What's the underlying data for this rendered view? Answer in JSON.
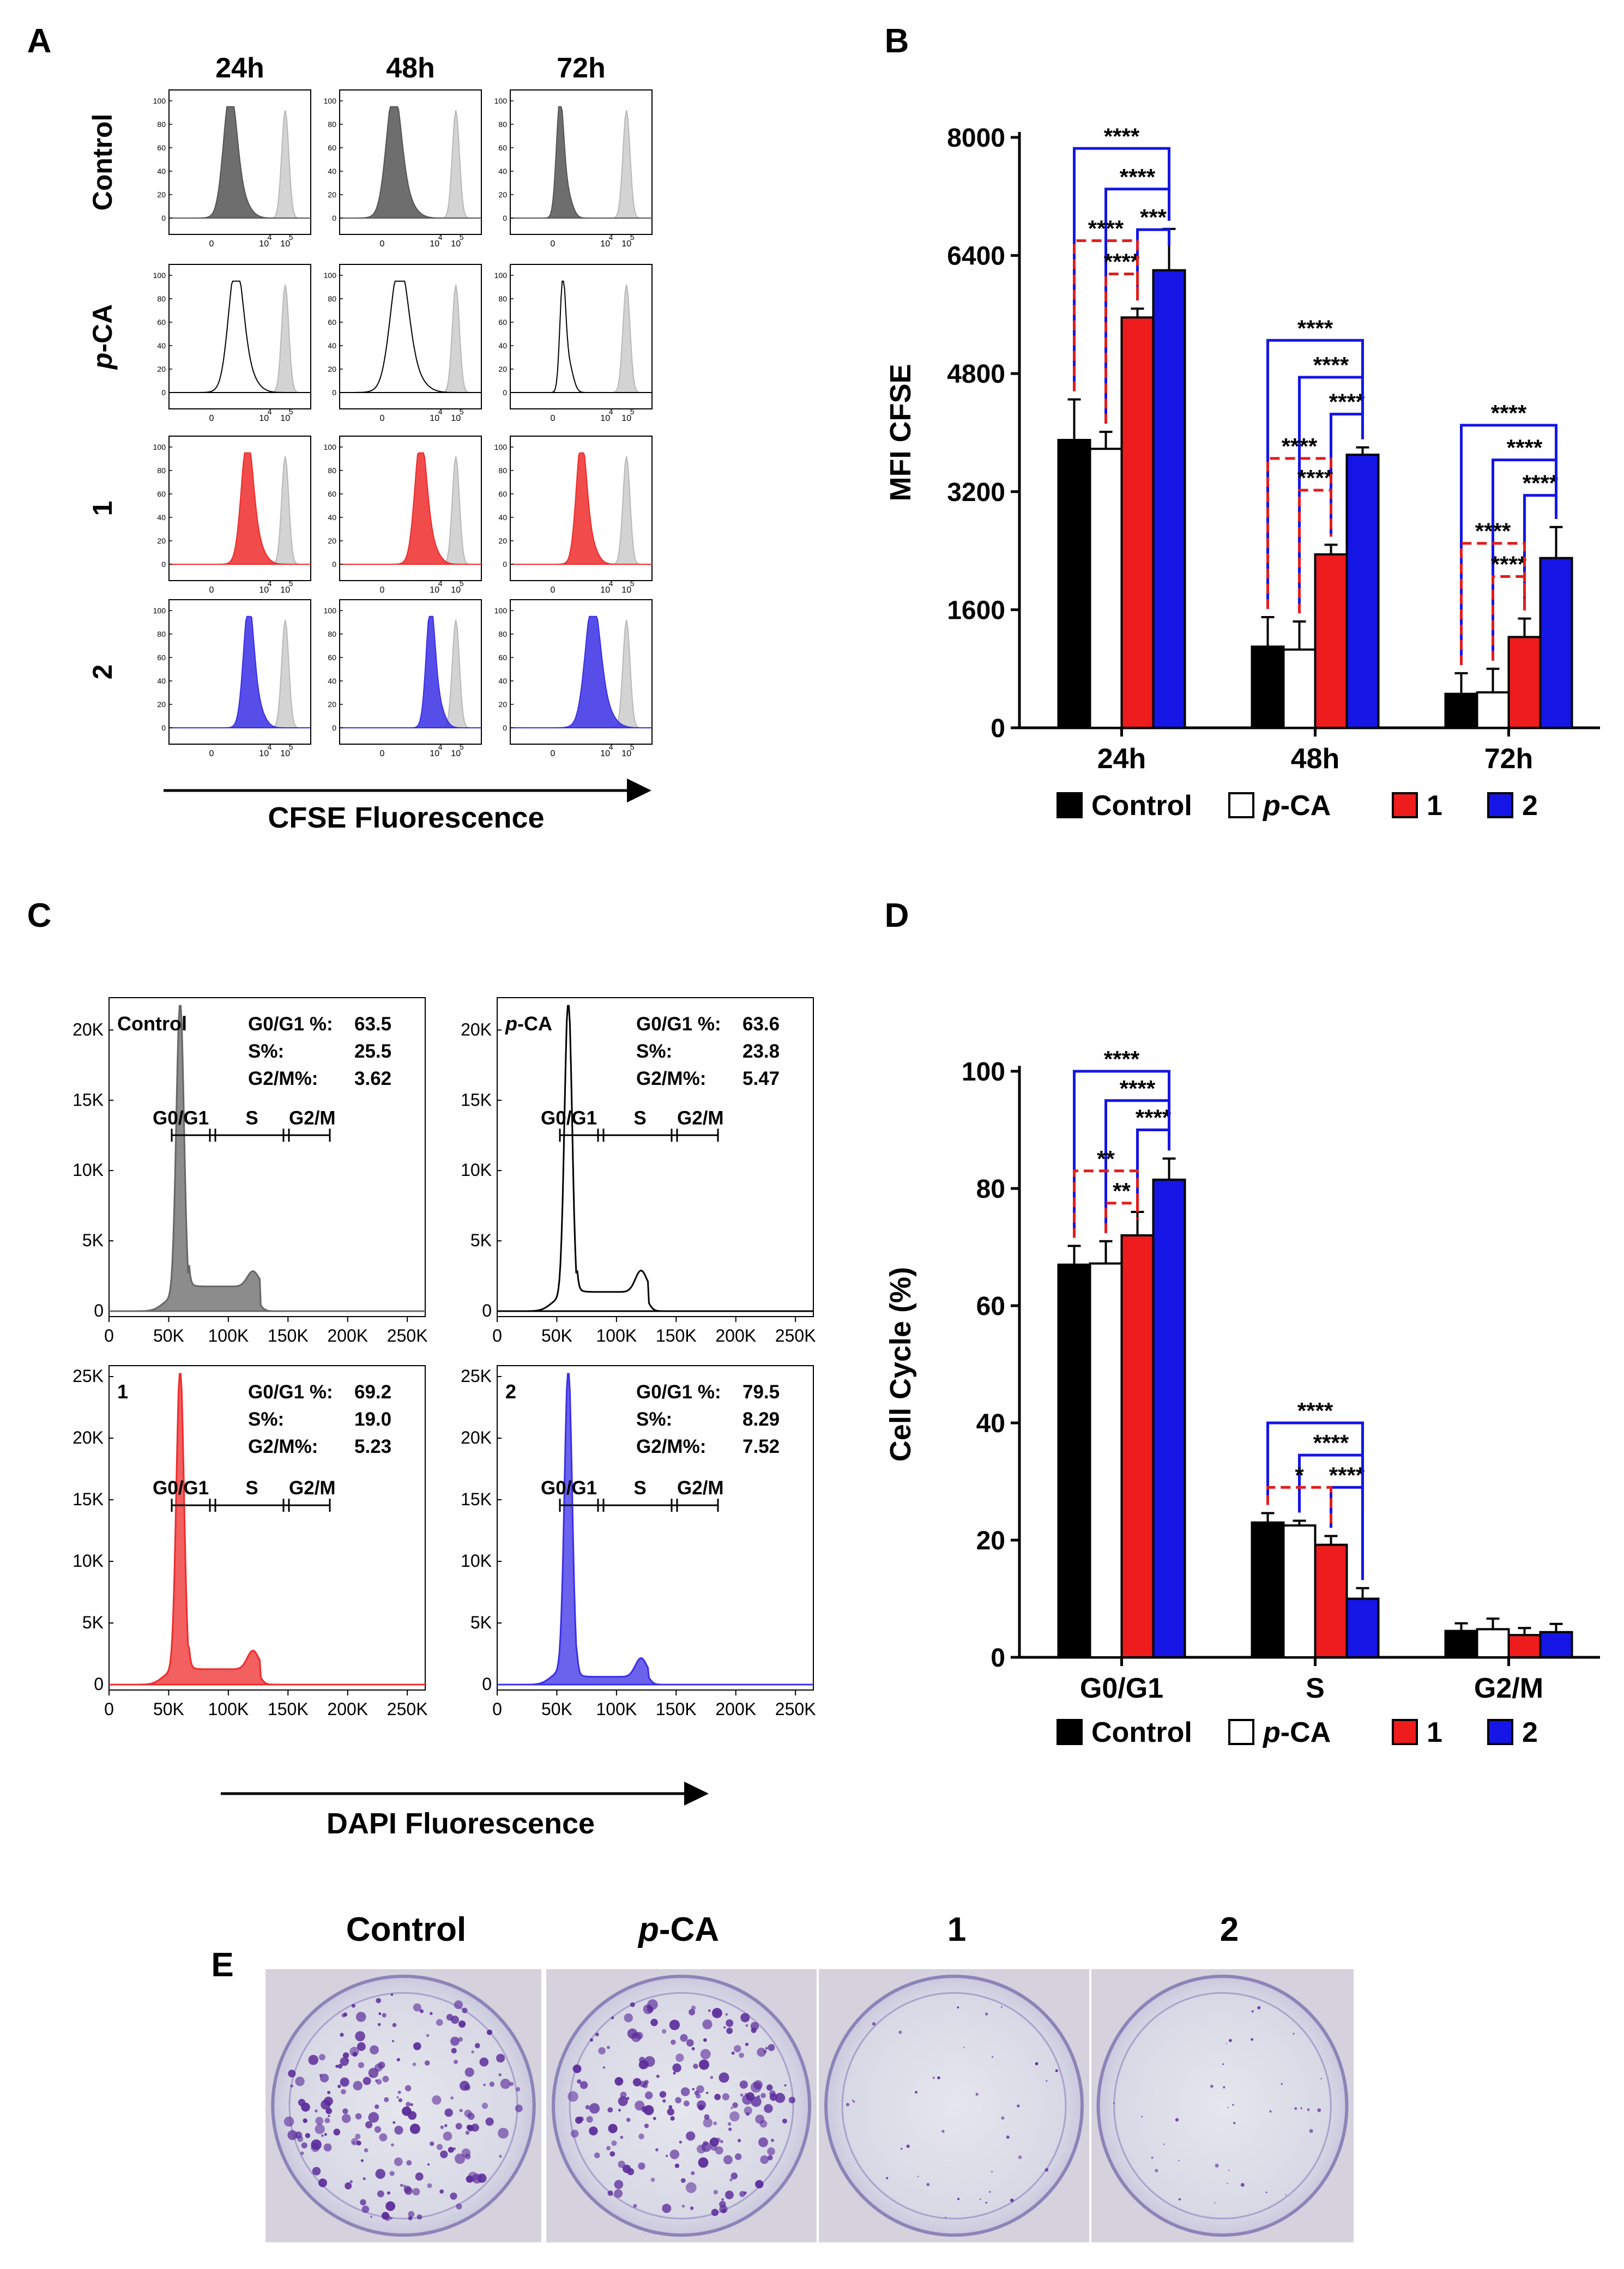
{
  "panels": {
    "A": {
      "letter": "A",
      "columns": [
        "24h",
        "48h",
        "72h"
      ],
      "rows": [
        {
          "label": "Control",
          "label_prefix": "",
          "label_rest": "Control",
          "color": "#555555",
          "filled": true
        },
        {
          "label": "p-CA",
          "label_prefix": "p",
          "label_rest": "-CA",
          "color": "#000000",
          "filled": false
        },
        {
          "label": "1",
          "label_prefix": "",
          "label_rest": "1",
          "color": "#ee2b2b",
          "filled": true
        },
        {
          "label": "2",
          "label_prefix": "",
          "label_rest": "2",
          "color": "#3a2fe6",
          "filled": true
        }
      ],
      "y_ticks": [
        "0",
        "20",
        "40",
        "60",
        "80",
        "100"
      ],
      "x_ticks": [
        "0",
        "10",
        "4",
        "10",
        "5"
      ],
      "axis_label": "CFSE Fluorescence",
      "reference_color": "#d3d3d3"
    },
    "C": {
      "letter": "C",
      "subplots": [
        {
          "label": "Control",
          "label_prefix": "",
          "label_rest": "Control",
          "color": "#666666",
          "filled": true,
          "stats": [
            {
              "k": "G0/G1 %:",
              "v": "63.5"
            },
            {
              "k": "S%:",
              "v": "25.5"
            },
            {
              "k": "G2/M%:",
              "v": "3.62"
            }
          ],
          "gates": [
            "G0/G1",
            "S",
            "G2/M"
          ],
          "y_ticks": [
            "0",
            "5K",
            "10K",
            "15K",
            "20K"
          ]
        },
        {
          "label": "p-CA",
          "label_prefix": "p",
          "label_rest": "-CA",
          "color": "#000000",
          "filled": false,
          "stats": [
            {
              "k": "G0/G1 %:",
              "v": "63.6"
            },
            {
              "k": "S%:",
              "v": "23.8"
            },
            {
              "k": "G2/M%:",
              "v": "5.47"
            }
          ],
          "gates": [
            "G0/G1",
            "S",
            "G2/M"
          ],
          "y_ticks": [
            "0",
            "5K",
            "10K",
            "15K",
            "20K"
          ]
        },
        {
          "label": "1",
          "label_prefix": "",
          "label_rest": "1",
          "color": "#ee2b2b",
          "filled": true,
          "stats": [
            {
              "k": "G0/G1 %:",
              "v": "69.2"
            },
            {
              "k": "S%:",
              "v": "19.0"
            },
            {
              "k": "G2/M%:",
              "v": "5.23"
            }
          ],
          "gates": [
            "G0/G1",
            "S",
            "G2/M"
          ],
          "y_ticks": [
            "0",
            "5K",
            "10K",
            "15K",
            "20K",
            "25K"
          ]
        },
        {
          "label": "2",
          "label_prefix": "",
          "label_rest": "2",
          "color": "#3a2fe6",
          "filled": true,
          "stats": [
            {
              "k": "G0/G1 %:",
              "v": "79.5"
            },
            {
              "k": "S%:",
              "v": "8.29"
            },
            {
              "k": "G2/M%:",
              "v": "7.52"
            }
          ],
          "gates": [
            "G0/G1",
            "S",
            "G2/M"
          ],
          "y_ticks": [
            "0",
            "5K",
            "10K",
            "15K",
            "20K",
            "25K"
          ]
        }
      ],
      "x_ticks": [
        "0",
        "50K",
        "100K",
        "150K",
        "200K",
        "250K"
      ],
      "axis_label": "DAPI Fluorescence"
    },
    "E": {
      "letter": "E",
      "wells": [
        {
          "label": "Control",
          "label_prefix": "",
          "label_rest": "Control",
          "colonies": "dense"
        },
        {
          "label": "p-CA",
          "label_prefix": "p",
          "label_rest": "-CA",
          "colonies": "dense"
        },
        {
          "label": "1",
          "label_prefix": "",
          "label_rest": "1",
          "colonies": "sparse"
        },
        {
          "label": "2",
          "label_prefix": "",
          "label_rest": "2",
          "colonies": "sparse"
        }
      ]
    }
  },
  "legend": [
    {
      "name": "Control",
      "prefix": "",
      "rest": "Control",
      "color": "#000000"
    },
    {
      "name": "p-CA",
      "prefix": "p",
      "rest": "-CA",
      "color": "#ffffff"
    },
    {
      "name": "1",
      "prefix": "",
      "rest": "1",
      "color": "#ee1c1c"
    },
    {
      "name": "2",
      "prefix": "",
      "rest": "2",
      "color": "#1515e6"
    }
  ],
  "chart_data": [
    {
      "panel": "B",
      "type": "bar",
      "title": "",
      "xlabel": "",
      "ylabel": "MFI CFSE",
      "categories": [
        "24h",
        "48h",
        "72h"
      ],
      "ylim": [
        0,
        8000
      ],
      "yticks": [
        0,
        1600,
        3200,
        4800,
        6400,
        8000
      ],
      "series": [
        {
          "name": "Control",
          "color": "#000000",
          "values": [
            3900,
            1100,
            460
          ],
          "errors": [
            550,
            400,
            280
          ]
        },
        {
          "name": "p-CA",
          "color": "#ffffff",
          "values": [
            3780,
            1060,
            480
          ],
          "errors": [
            230,
            380,
            320
          ]
        },
        {
          "name": "1",
          "color": "#ee1c1c",
          "values": [
            5560,
            2350,
            1230
          ],
          "errors": [
            120,
            130,
            250
          ]
        },
        {
          "name": "2",
          "color": "#1515e6",
          "values": [
            6200,
            3700,
            2300
          ],
          "errors": [
            560,
            100,
            420
          ]
        }
      ],
      "annotations": [
        {
          "group": 0,
          "from": 2,
          "to": 3,
          "text": "***",
          "value": 6750,
          "style": "solid"
        },
        {
          "group": 0,
          "from": 1,
          "to": 3,
          "text": "****",
          "value": 7300,
          "style": "solid"
        },
        {
          "group": 0,
          "from": 0,
          "to": 3,
          "text": "****",
          "value": 7850,
          "style": "solid"
        },
        {
          "group": 0,
          "from": 1,
          "to": 2,
          "text": "****",
          "value": 6150,
          "style": "dashed"
        },
        {
          "group": 0,
          "from": 0,
          "to": 2,
          "text": "****",
          "value": 6600,
          "style": "dashed"
        },
        {
          "group": 1,
          "from": 2,
          "to": 3,
          "text": "****",
          "value": 4250,
          "style": "solid"
        },
        {
          "group": 1,
          "from": 1,
          "to": 3,
          "text": "****",
          "value": 4750,
          "style": "solid"
        },
        {
          "group": 1,
          "from": 0,
          "to": 3,
          "text": "****",
          "value": 5250,
          "style": "solid"
        },
        {
          "group": 1,
          "from": 1,
          "to": 2,
          "text": "****",
          "value": 3220,
          "style": "dashed"
        },
        {
          "group": 1,
          "from": 0,
          "to": 2,
          "text": "****",
          "value": 3650,
          "style": "dashed"
        },
        {
          "group": 2,
          "from": 2,
          "to": 3,
          "text": "****",
          "value": 3150,
          "style": "solid"
        },
        {
          "group": 2,
          "from": 1,
          "to": 3,
          "text": "****",
          "value": 3630,
          "style": "solid"
        },
        {
          "group": 2,
          "from": 0,
          "to": 3,
          "text": "****",
          "value": 4100,
          "style": "solid"
        },
        {
          "group": 2,
          "from": 1,
          "to": 2,
          "text": "****",
          "value": 2050,
          "style": "dashed"
        },
        {
          "group": 2,
          "from": 0,
          "to": 2,
          "text": "****",
          "value": 2500,
          "style": "dashed"
        }
      ]
    },
    {
      "panel": "D",
      "type": "bar",
      "title": "",
      "xlabel": "",
      "ylabel": "Cell Cycle (%)",
      "categories": [
        "G0/G1",
        "S",
        "G2/M"
      ],
      "ylim": [
        0,
        100
      ],
      "yticks": [
        0,
        20,
        40,
        60,
        80,
        100
      ],
      "series": [
        {
          "name": "Control",
          "color": "#000000",
          "values": [
            67,
            23,
            4.5
          ],
          "errors": [
            3.2,
            1.6,
            1.3
          ]
        },
        {
          "name": "p-CA",
          "color": "#ffffff",
          "values": [
            67.2,
            22.5,
            4.8
          ],
          "errors": [
            3.8,
            0.8,
            1.8
          ]
        },
        {
          "name": "1",
          "color": "#ee1c1c",
          "values": [
            72,
            19.2,
            3.8
          ],
          "errors": [
            4.0,
            1.5,
            1.2
          ]
        },
        {
          "name": "2",
          "color": "#1515e6",
          "values": [
            81.5,
            10,
            4.3
          ],
          "errors": [
            3.6,
            1.8,
            1.4
          ]
        }
      ],
      "annotations": [
        {
          "group": 0,
          "from": 2,
          "to": 3,
          "text": "****",
          "value": 90,
          "style": "solid"
        },
        {
          "group": 0,
          "from": 1,
          "to": 3,
          "text": "****",
          "value": 95,
          "style": "solid"
        },
        {
          "group": 0,
          "from": 0,
          "to": 3,
          "text": "****",
          "value": 100,
          "style": "solid"
        },
        {
          "group": 0,
          "from": 1,
          "to": 2,
          "text": "**",
          "value": 77.5,
          "style": "dashed"
        },
        {
          "group": 0,
          "from": 0,
          "to": 2,
          "text": "**",
          "value": 83,
          "style": "dashed"
        },
        {
          "group": 1,
          "from": 2,
          "to": 3,
          "text": "****",
          "value": 29,
          "style": "solid"
        },
        {
          "group": 1,
          "from": 1,
          "to": 3,
          "text": "****",
          "value": 34.5,
          "style": "solid"
        },
        {
          "group": 1,
          "from": 0,
          "to": 3,
          "text": "****",
          "value": 40,
          "style": "solid"
        },
        {
          "group": 1,
          "from": 0,
          "to": 2,
          "text": "*",
          "value": 29,
          "style": "dashed"
        }
      ]
    }
  ]
}
